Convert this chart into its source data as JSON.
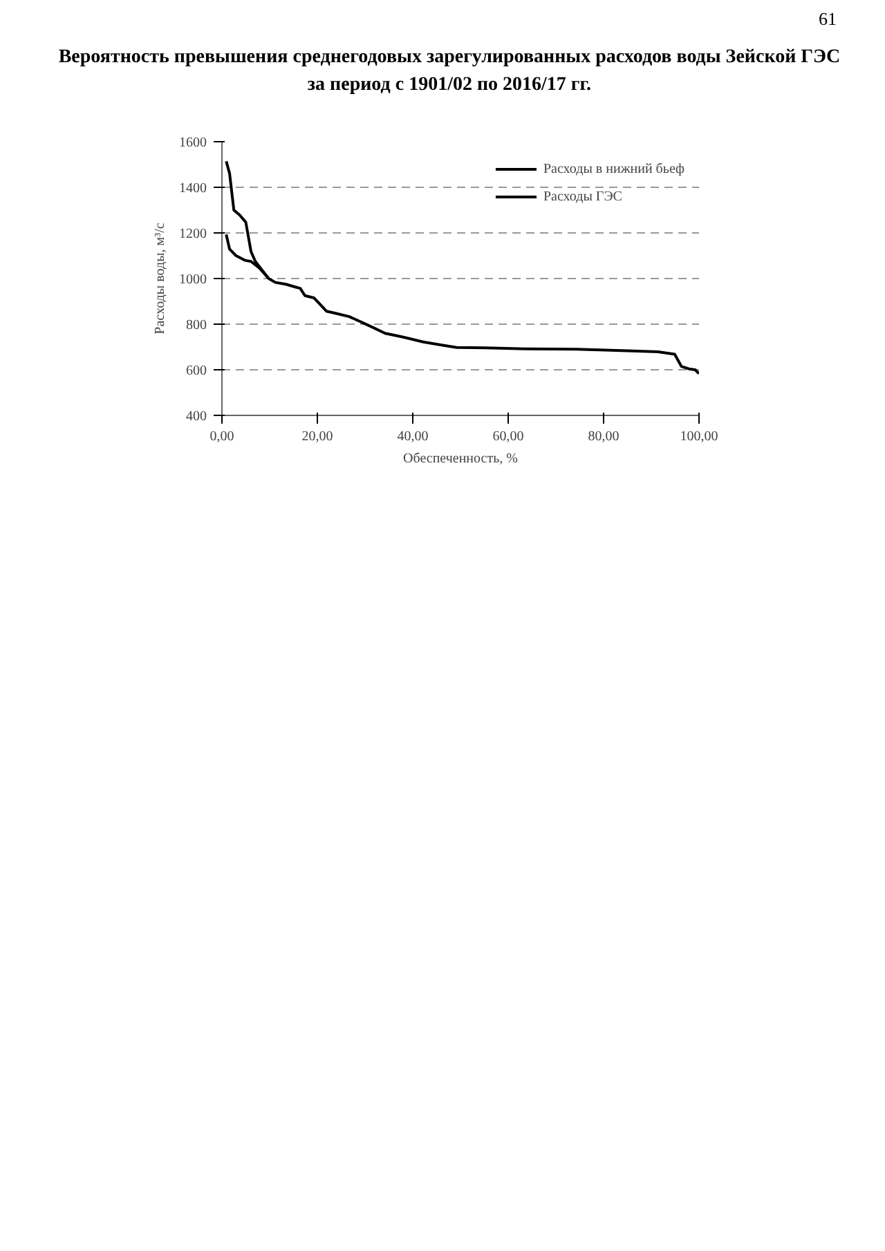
{
  "chart_data": {
    "type": "line",
    "title": "Вероятность превышения среднегодовых зарегулированных расходов воды Зейской ГЭС\nза период с 1901/02 по 2016/17 гг.",
    "xlabel": "Обеспеченность, %",
    "ylabel": "Расходы воды, м³/с",
    "annotations": [
      "61"
    ],
    "series": [
      {
        "name": "Расходы в нижний бьеф",
        "color": "#000000",
        "x": [
          0.9,
          1.6,
          2.5,
          3.7,
          5.0,
          6.1,
          7.0,
          8.6,
          9.8
        ],
        "values": [
          1514,
          1461,
          1300,
          1279,
          1247,
          1118,
          1075,
          1032,
          1000
        ]
      },
      {
        "name": "Расходы ГЭС",
        "color": "#000000",
        "x": [
          0.9,
          1.6,
          2.9,
          4.8,
          6.1,
          8.0,
          9.8,
          11.2,
          13.4,
          15.5,
          16.4,
          17.4,
          19.3,
          20.3,
          21.9,
          24.1,
          26.7,
          28.9,
          31.6,
          34.2,
          38.0,
          42.2,
          46.5,
          49.2,
          55.0,
          63.6,
          74.3,
          85.0,
          91.4,
          94.9,
          96.3,
          97.9,
          99.2,
          100.0
        ],
        "values": [
          1193,
          1129,
          1101,
          1080,
          1075,
          1043,
          1000,
          983,
          975,
          962,
          957,
          925,
          915,
          893,
          857,
          846,
          833,
          812,
          786,
          760,
          743,
          722,
          707,
          698,
          696,
          692,
          690,
          683,
          679,
          668,
          615,
          604,
          600,
          583
        ]
      }
    ],
    "xlim": [
      0,
      100
    ],
    "ylim": [
      400,
      1600
    ],
    "xticks": [
      {
        "value": 0,
        "label": "0,00"
      },
      {
        "value": 20,
        "label": "20,00"
      },
      {
        "value": 40,
        "label": "40,00"
      },
      {
        "value": 60,
        "label": "60,00"
      },
      {
        "value": 80,
        "label": "80,00"
      },
      {
        "value": 100,
        "label": "100,00"
      }
    ],
    "yticks": [
      400,
      600,
      800,
      1000,
      1200,
      1400,
      1600
    ],
    "grid": "y",
    "legend": "top right",
    "marker": "none",
    "line_style": "solid"
  }
}
